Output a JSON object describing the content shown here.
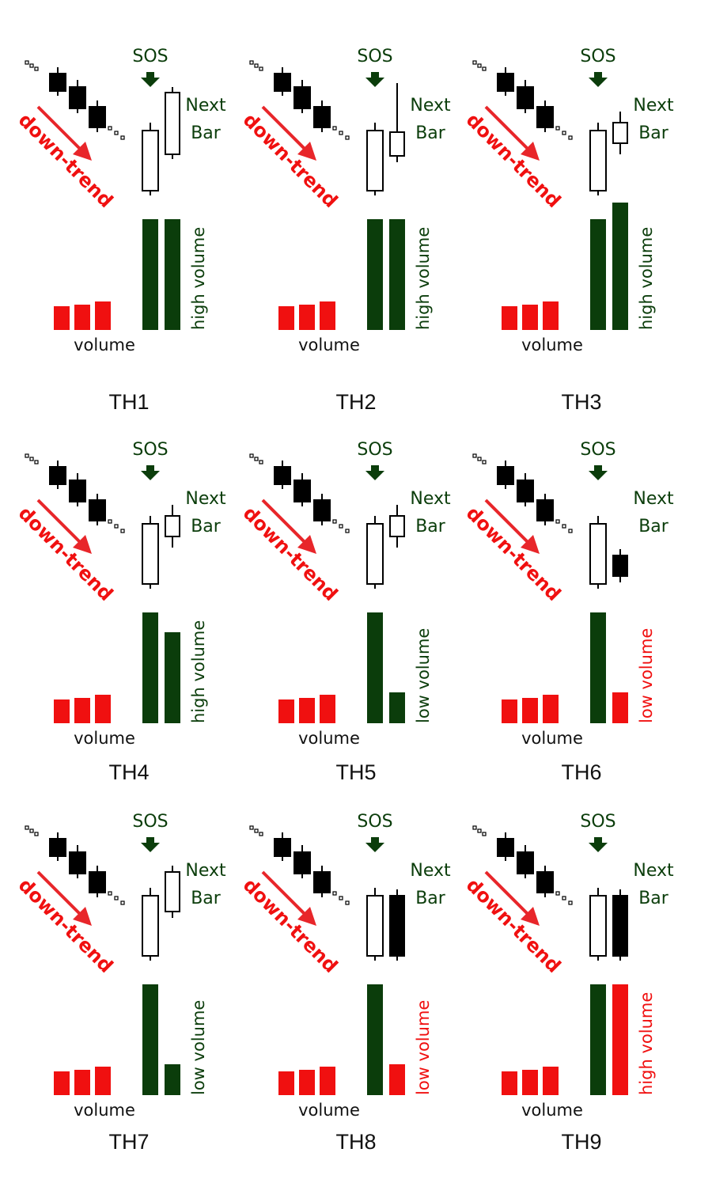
{
  "colors": {
    "down_candle": "#000000",
    "up_candle_fill": "#ffffff",
    "dark_green": "#0b3d0b",
    "red": "#f01010",
    "text": "#111111"
  },
  "labels": {
    "sos": "SOS",
    "next": "Next",
    "bar": "Bar",
    "trend": "down-trend",
    "volume": "volume",
    "high_volume": "high volume",
    "low_volume": "low volume"
  },
  "panels": [
    {
      "caption": "TH1",
      "next_bar": {
        "direction": "up",
        "size": "tall"
      },
      "next_volume": {
        "level": "high",
        "relative": 1.0,
        "color": "dark_green"
      }
    },
    {
      "caption": "TH2",
      "next_bar": {
        "direction": "up",
        "size": "small-long-wick"
      },
      "next_volume": {
        "level": "high",
        "relative": 1.0,
        "color": "dark_green"
      }
    },
    {
      "caption": "TH3",
      "next_bar": {
        "direction": "up",
        "size": "small"
      },
      "next_volume": {
        "level": "high",
        "relative": 1.15,
        "color": "dark_green"
      }
    },
    {
      "caption": "TH4",
      "next_bar": {
        "direction": "up",
        "size": "small"
      },
      "next_volume": {
        "level": "high",
        "relative": 0.82,
        "color": "dark_green"
      }
    },
    {
      "caption": "TH5",
      "next_bar": {
        "direction": "up",
        "size": "small"
      },
      "next_volume": {
        "level": "low",
        "relative": 0.28,
        "color": "dark_green"
      }
    },
    {
      "caption": "TH6",
      "next_bar": {
        "direction": "down",
        "size": "small"
      },
      "next_volume": {
        "level": "low",
        "relative": 0.28,
        "color": "red"
      }
    },
    {
      "caption": "TH7",
      "next_bar": {
        "direction": "up",
        "size": "medium"
      },
      "next_volume": {
        "level": "low",
        "relative": 0.28,
        "color": "dark_green"
      }
    },
    {
      "caption": "TH8",
      "next_bar": {
        "direction": "down",
        "size": "tall"
      },
      "next_volume": {
        "level": "low",
        "relative": 0.28,
        "color": "red"
      }
    },
    {
      "caption": "TH9",
      "next_bar": {
        "direction": "down",
        "size": "tall"
      },
      "next_volume": {
        "level": "high",
        "relative": 1.0,
        "color": "red"
      }
    }
  ]
}
